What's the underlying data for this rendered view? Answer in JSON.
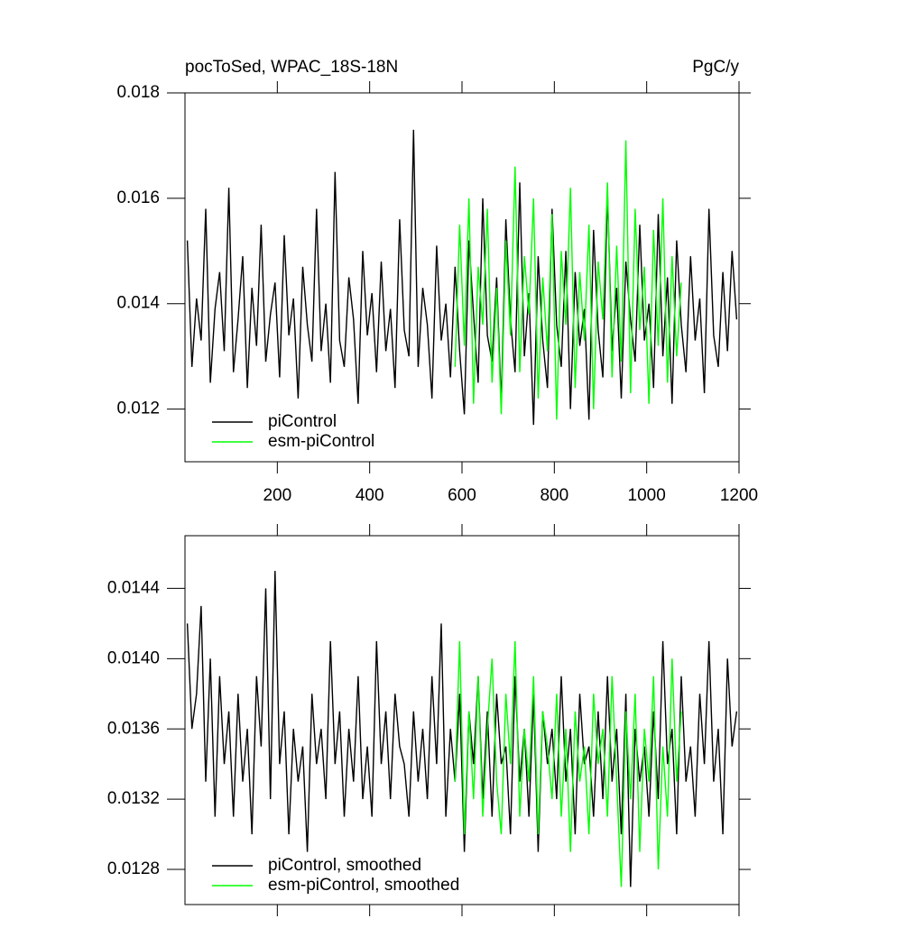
{
  "chart_data": [
    {
      "type": "line",
      "title": "pocToSed, WPAC_18S-18N",
      "units": "PgC/y",
      "xlim": [
        0,
        1200
      ],
      "xticks": [
        200,
        400,
        600,
        800,
        1000,
        1200
      ],
      "x_tick_labels": true,
      "ylim": [
        0.011,
        0.018
      ],
      "yticks": [
        0.012,
        0.014,
        0.016,
        0.018
      ],
      "series": [
        {
          "name": "piControl",
          "color": "#000000",
          "x": [
            5,
            15,
            25,
            35,
            45,
            55,
            65,
            75,
            85,
            95,
            105,
            115,
            125,
            135,
            145,
            155,
            165,
            175,
            185,
            195,
            205,
            215,
            225,
            235,
            245,
            255,
            265,
            275,
            285,
            295,
            305,
            315,
            325,
            335,
            345,
            355,
            365,
            375,
            385,
            395,
            405,
            415,
            425,
            435,
            445,
            455,
            465,
            475,
            485,
            495,
            505,
            515,
            525,
            535,
            545,
            555,
            565,
            575,
            585,
            595,
            605,
            615,
            625,
            635,
            645,
            655,
            665,
            675,
            685,
            695,
            705,
            715,
            725,
            735,
            745,
            755,
            765,
            775,
            785,
            795,
            805,
            815,
            825,
            835,
            845,
            855,
            865,
            875,
            885,
            895,
            905,
            915,
            925,
            935,
            945,
            955,
            965,
            975,
            985,
            995,
            1005,
            1015,
            1025,
            1035,
            1045,
            1055,
            1065,
            1075,
            1085,
            1095,
            1105,
            1115,
            1125,
            1135,
            1145,
            1155,
            1165,
            1175,
            1185,
            1195
          ],
          "values": [
            0.0152,
            0.0128,
            0.0141,
            0.0133,
            0.0158,
            0.0125,
            0.0139,
            0.0146,
            0.0131,
            0.0162,
            0.0127,
            0.0137,
            0.0149,
            0.0124,
            0.0143,
            0.0132,
            0.0155,
            0.0129,
            0.0138,
            0.0144,
            0.0126,
            0.0153,
            0.0134,
            0.0141,
            0.0122,
            0.0147,
            0.0136,
            0.0129,
            0.0158,
            0.0131,
            0.014,
            0.0125,
            0.0165,
            0.0133,
            0.0128,
            0.0145,
            0.0137,
            0.0121,
            0.015,
            0.0134,
            0.0142,
            0.0127,
            0.0148,
            0.0131,
            0.0139,
            0.0124,
            0.0156,
            0.0135,
            0.013,
            0.0173,
            0.0128,
            0.0143,
            0.0136,
            0.0122,
            0.0151,
            0.0133,
            0.014,
            0.0126,
            0.0147,
            0.0131,
            0.0119,
            0.0152,
            0.0138,
            0.0125,
            0.016,
            0.0134,
            0.0129,
            0.0145,
            0.0121,
            0.0156,
            0.0137,
            0.0127,
            0.0163,
            0.013,
            0.0142,
            0.0117,
            0.0149,
            0.0133,
            0.0124,
            0.0158,
            0.0136,
            0.0128,
            0.015,
            0.012,
            0.0146,
            0.0132,
            0.0139,
            0.0118,
            0.0154,
            0.0135,
            0.0126,
            0.0161,
            0.0131,
            0.0143,
            0.0122,
            0.0148,
            0.0137,
            0.0129,
            0.0155,
            0.0133,
            0.014,
            0.0124,
            0.0157,
            0.013,
            0.0145,
            0.0121,
            0.0152,
            0.0136,
            0.0127,
            0.0149,
            0.0133,
            0.0141,
            0.0123,
            0.0158,
            0.0134,
            0.0128,
            0.0146,
            0.0131,
            0.015,
            0.0137
          ]
        },
        {
          "name": "esm-piControl",
          "color": "#00ff00",
          "x": [
            585,
            595,
            605,
            615,
            625,
            635,
            645,
            655,
            665,
            675,
            685,
            695,
            705,
            715,
            725,
            735,
            745,
            755,
            765,
            775,
            785,
            795,
            805,
            815,
            825,
            835,
            845,
            855,
            865,
            875,
            885,
            895,
            905,
            915,
            925,
            935,
            945,
            955,
            965,
            975,
            985,
            995,
            1005,
            1015,
            1025,
            1035,
            1045,
            1055,
            1065,
            1075
          ],
          "values": [
            0.0128,
            0.0155,
            0.0132,
            0.016,
            0.0121,
            0.0147,
            0.0136,
            0.0158,
            0.0125,
            0.0143,
            0.0119,
            0.0152,
            0.0134,
            0.0166,
            0.0127,
            0.0149,
            0.0138,
            0.016,
            0.0122,
            0.0145,
            0.0131,
            0.0157,
            0.0118,
            0.015,
            0.0136,
            0.0162,
            0.0124,
            0.0146,
            0.0133,
            0.0155,
            0.012,
            0.0148,
            0.0137,
            0.0163,
            0.0126,
            0.0151,
            0.0129,
            0.0171,
            0.0123,
            0.0158,
            0.0135,
            0.0147,
            0.0121,
            0.0154,
            0.0132,
            0.016,
            0.0125,
            0.0149,
            0.013,
            0.0144
          ]
        }
      ]
    },
    {
      "type": "line",
      "xlim": [
        0,
        1200
      ],
      "xticks": [
        200,
        400,
        600,
        800,
        1000,
        1200
      ],
      "x_tick_labels": false,
      "ylim": [
        0.0126,
        0.0147
      ],
      "yticks": [
        0.0128,
        0.0132,
        0.0136,
        {
          "value": 0.014,
          "label": "0.0140"
        },
        0.0144
      ],
      "series": [
        {
          "name": "piControl, smoothed",
          "color": "#000000",
          "x": [
            5,
            15,
            25,
            35,
            45,
            55,
            65,
            75,
            85,
            95,
            105,
            115,
            125,
            135,
            145,
            155,
            165,
            175,
            185,
            195,
            205,
            215,
            225,
            235,
            245,
            255,
            265,
            275,
            285,
            295,
            305,
            315,
            325,
            335,
            345,
            355,
            365,
            375,
            385,
            395,
            405,
            415,
            425,
            435,
            445,
            455,
            465,
            475,
            485,
            495,
            505,
            515,
            525,
            535,
            545,
            555,
            565,
            575,
            585,
            595,
            605,
            615,
            625,
            635,
            645,
            655,
            665,
            675,
            685,
            695,
            705,
            715,
            725,
            735,
            745,
            755,
            765,
            775,
            785,
            795,
            805,
            815,
            825,
            835,
            845,
            855,
            865,
            875,
            885,
            895,
            905,
            915,
            925,
            935,
            945,
            955,
            965,
            975,
            985,
            995,
            1005,
            1015,
            1025,
            1035,
            1045,
            1055,
            1065,
            1075,
            1085,
            1095,
            1105,
            1115,
            1125,
            1135,
            1145,
            1155,
            1165,
            1175,
            1185,
            1195
          ],
          "values": [
            0.0142,
            0.0136,
            0.0138,
            0.0143,
            0.0133,
            0.014,
            0.0131,
            0.0139,
            0.0134,
            0.0137,
            0.0131,
            0.0138,
            0.0133,
            0.0136,
            0.013,
            0.0139,
            0.0135,
            0.0144,
            0.0132,
            0.0145,
            0.0134,
            0.0137,
            0.013,
            0.0136,
            0.0133,
            0.0135,
            0.0129,
            0.0138,
            0.0134,
            0.0136,
            0.0132,
            0.0141,
            0.0134,
            0.0137,
            0.0131,
            0.0136,
            0.0133,
            0.0139,
            0.0132,
            0.0135,
            0.0131,
            0.0141,
            0.0134,
            0.0137,
            0.0132,
            0.0138,
            0.0135,
            0.0134,
            0.0131,
            0.0137,
            0.0133,
            0.0136,
            0.0132,
            0.0139,
            0.0134,
            0.0142,
            0.0131,
            0.0136,
            0.0133,
            0.0138,
            0.0129,
            0.0137,
            0.0134,
            0.0139,
            0.0132,
            0.0137,
            0.0131,
            0.0138,
            0.0134,
            0.0135,
            0.013,
            0.0139,
            0.0133,
            0.0136,
            0.0131,
            0.0138,
            0.0129,
            0.0137,
            0.0134,
            0.0136,
            0.0132,
            0.0139,
            0.0133,
            0.0136,
            0.013,
            0.0138,
            0.0134,
            0.0135,
            0.0131,
            0.0137,
            0.0132,
            0.0139,
            0.0133,
            0.0136,
            0.013,
            0.0138,
            0.0127,
            0.0136,
            0.0133,
            0.0135,
            0.0131,
            0.0137,
            0.0132,
            0.0141,
            0.0134,
            0.0136,
            0.013,
            0.0139,
            0.0133,
            0.0135,
            0.0131,
            0.0138,
            0.0134,
            0.0141,
            0.0133,
            0.0136,
            0.013,
            0.014,
            0.0135,
            0.0137
          ]
        },
        {
          "name": "esm-piControl, smoothed",
          "color": "#00ff00",
          "x": [
            585,
            595,
            605,
            615,
            625,
            635,
            645,
            655,
            665,
            675,
            685,
            695,
            705,
            715,
            725,
            735,
            745,
            755,
            765,
            775,
            785,
            795,
            805,
            815,
            825,
            835,
            845,
            855,
            865,
            875,
            885,
            895,
            905,
            915,
            925,
            935,
            945,
            955,
            965,
            975,
            985,
            995,
            1005,
            1015,
            1025,
            1035,
            1045,
            1055,
            1065,
            1075
          ],
          "values": [
            0.0133,
            0.0141,
            0.013,
            0.0137,
            0.0132,
            0.0139,
            0.0131,
            0.0136,
            0.014,
            0.0133,
            0.013,
            0.0138,
            0.0134,
            0.0141,
            0.0131,
            0.0136,
            0.0133,
            0.0139,
            0.013,
            0.0137,
            0.0135,
            0.0132,
            0.0138,
            0.0131,
            0.0136,
            0.0129,
            0.0137,
            0.0133,
            0.0135,
            0.013,
            0.0138,
            0.0134,
            0.0136,
            0.0131,
            0.0139,
            0.0133,
            0.0127,
            0.0137,
            0.0132,
            0.0138,
            0.0129,
            0.0136,
            0.0133,
            0.0139,
            0.0128,
            0.0135,
            0.0131,
            0.014,
            0.0133,
            0.0137
          ]
        }
      ]
    }
  ]
}
